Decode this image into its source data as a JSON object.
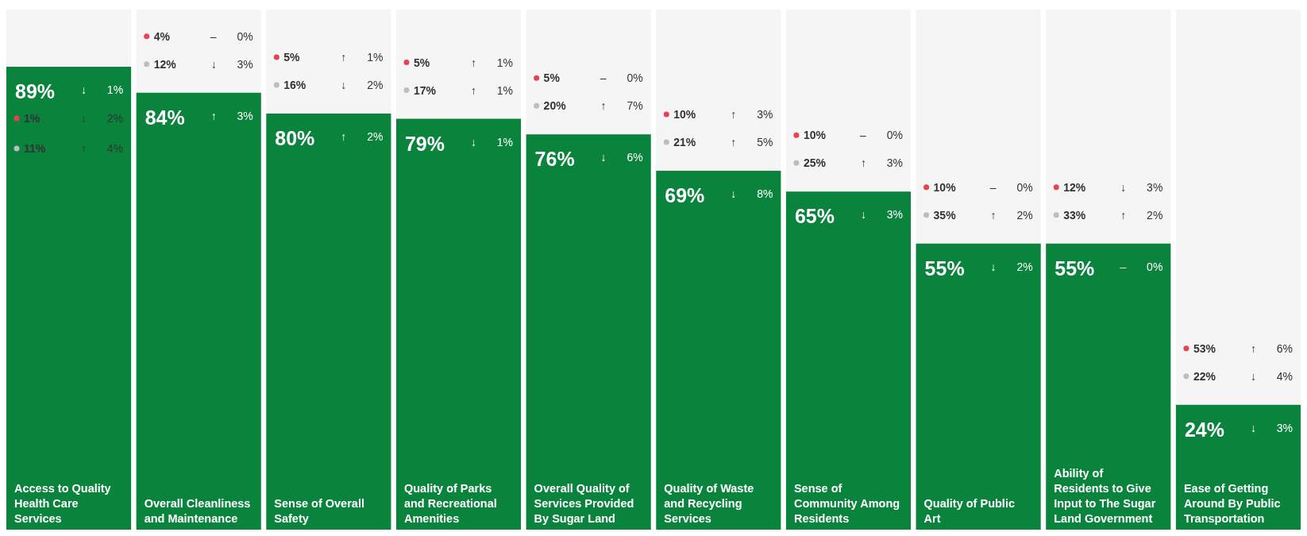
{
  "chart_data": {
    "type": "bar",
    "categories": [
      "Access to Quality Health Care Services",
      "Overall Cleanliness and Maintenance",
      "Sense of Overall Safety",
      "Quality of Parks and Recreational Amenities",
      "Overall Quality of Services Provided By Sugar Land",
      "Quality of Waste and Recycling Services",
      "Sense of Community Among Residents",
      "Quality of Public Art",
      "Ability of Residents to Give Input to The Sugar Land Government",
      "Ease of Getting Around By Public Transportation"
    ],
    "values": [
      89,
      84,
      80,
      79,
      76,
      69,
      65,
      55,
      55,
      24
    ],
    "value_labels": [
      "89%",
      "84%",
      "80%",
      "79%",
      "76%",
      "69%",
      "65%",
      "55%",
      "55%",
      "24%"
    ],
    "color": "#0a833d",
    "ylim": [
      0,
      100
    ],
    "tick_labels": "x",
    "annotations": [
      "1%",
      "↓ 2%",
      "11%",
      "↑ 4%",
      "↓ 1%",
      "4%",
      "– 0%",
      "12%",
      "↓ 3%",
      "↑ 3%",
      "5%",
      "↑ 1%",
      "16%",
      "↓ 2%",
      "↑ 2%",
      "5%",
      "↑ 1%",
      "17%",
      "↑ 1%",
      "↓ 1%",
      "5%",
      "– 0%",
      "20%",
      "↑ 7%",
      "↓ 6%",
      "10%",
      "↑ 3%",
      "21%",
      "↑ 5%",
      "↓ 8%",
      "10%",
      "– 0%",
      "25%",
      "↑ 3%",
      "↓ 3%",
      "10%",
      "– 0%",
      "35%",
      "↑ 2%",
      "↓ 2%",
      "12%",
      "↓ 3%",
      "33%",
      "↑ 2%",
      "– 0%",
      "53%",
      "↑ 6%",
      "22%",
      "↓ 4%",
      "↓ 3%"
    ]
  }
}
